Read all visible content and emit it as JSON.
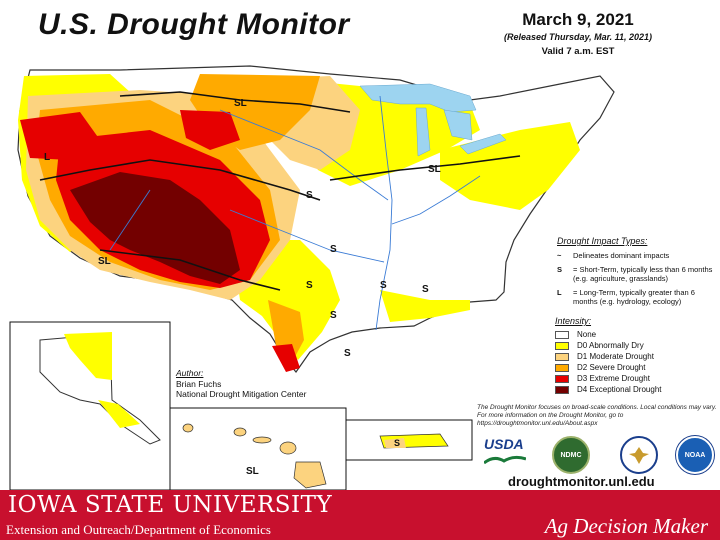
{
  "map": {
    "title": "U.S. Drought Monitor",
    "date": "March 9, 2021",
    "released": "(Released Thursday, Mar. 11, 2021)",
    "valid": "Valid 7 a.m. EST",
    "region_labels": {
      "sl_north": "SL",
      "l_west": "L",
      "sl_southwest": "SL",
      "sl_midwest": "SL",
      "s_plains": "S",
      "s_south_1": "S",
      "s_south_2": "S",
      "s_south_3": "S",
      "s_texas_1": "S",
      "s_texas_2": "S",
      "s_southeast": "S",
      "s_puerto_rico": "S",
      "sl_hawaii": "SL"
    }
  },
  "impact": {
    "title": "Drought Impact Types:",
    "delineates_symbol": "~",
    "delineates": "Delineates dominant impacts",
    "short_symbol": "S",
    "short_term": "= Short-Term, typically less than 6 months (e.g. agriculture, grasslands)",
    "long_symbol": "L",
    "long_term": "= Long-Term, typically greater than 6 months (e.g. hydrology, ecology)"
  },
  "intensity": {
    "title": "Intensity:",
    "levels": [
      {
        "label": "None",
        "color": "#ffffff"
      },
      {
        "label": "D0 Abnormally Dry",
        "color": "#ffff00"
      },
      {
        "label": "D1 Moderate Drought",
        "color": "#fcd37f"
      },
      {
        "label": "D2 Severe Drought",
        "color": "#ffaa00"
      },
      {
        "label": "D3 Extreme Drought",
        "color": "#e60000"
      },
      {
        "label": "D4 Exceptional Drought",
        "color": "#730000"
      }
    ]
  },
  "author": {
    "title": "Author:",
    "name": "Brian Fuchs",
    "org": "National Drought Mitigation Center"
  },
  "disclaimer": "The Drought Monitor focuses on broad-scale conditions. Local conditions may vary. For more information on the Drought Monitor, go to https://droughtmonitor.unl.edu/About.aspx",
  "logos": {
    "usda": "USDA",
    "ndmc": "NDMC",
    "noaa": "NOAA"
  },
  "site": "droughtmonitor.unl.edu",
  "footer": {
    "university": "IOWA STATE UNIVERSITY",
    "department": "Extension and Outreach/Department of Economics",
    "brand": "Ag Decision Maker"
  },
  "colors": {
    "footer_red": "#c8102e",
    "water": "#9dd4f0",
    "river": "#3a7bd5"
  }
}
